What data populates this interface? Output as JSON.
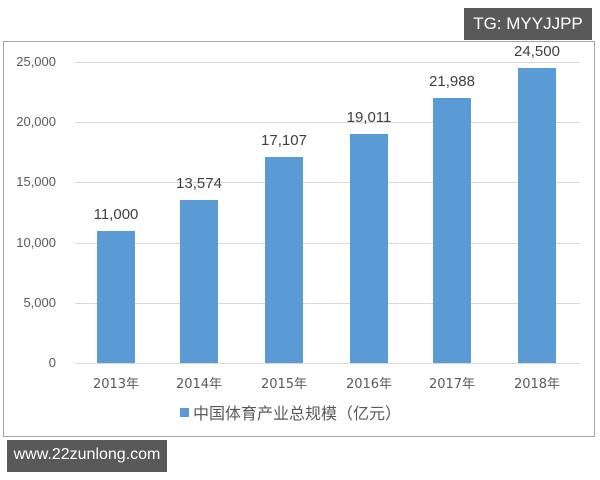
{
  "watermarks": {
    "top_right": "TG: MYYJJPP",
    "bottom_left": "www.22zunlong.com"
  },
  "colors": {
    "bar": "#5b9bd5",
    "watermark_bg": "#595959"
  },
  "chart_data": {
    "type": "bar",
    "title": "",
    "xlabel": "",
    "ylabel": "",
    "categories": [
      "2013年",
      "2014年",
      "2015年",
      "2016年",
      "2017年",
      "2018年"
    ],
    "series": [
      {
        "name": "中国体育产业总规模（亿元）",
        "values": [
          11000,
          13574,
          17107,
          19011,
          21988,
          24500
        ]
      }
    ],
    "data_labels": [
      "11,000",
      "13,574",
      "17,107",
      "19,011",
      "21,988",
      "24,500"
    ],
    "yticks": [
      "0",
      "5,000",
      "10,000",
      "15,000",
      "20,000",
      "25,000"
    ],
    "ylim": [
      0,
      25000
    ],
    "grid": true,
    "legend_position": "bottom"
  }
}
